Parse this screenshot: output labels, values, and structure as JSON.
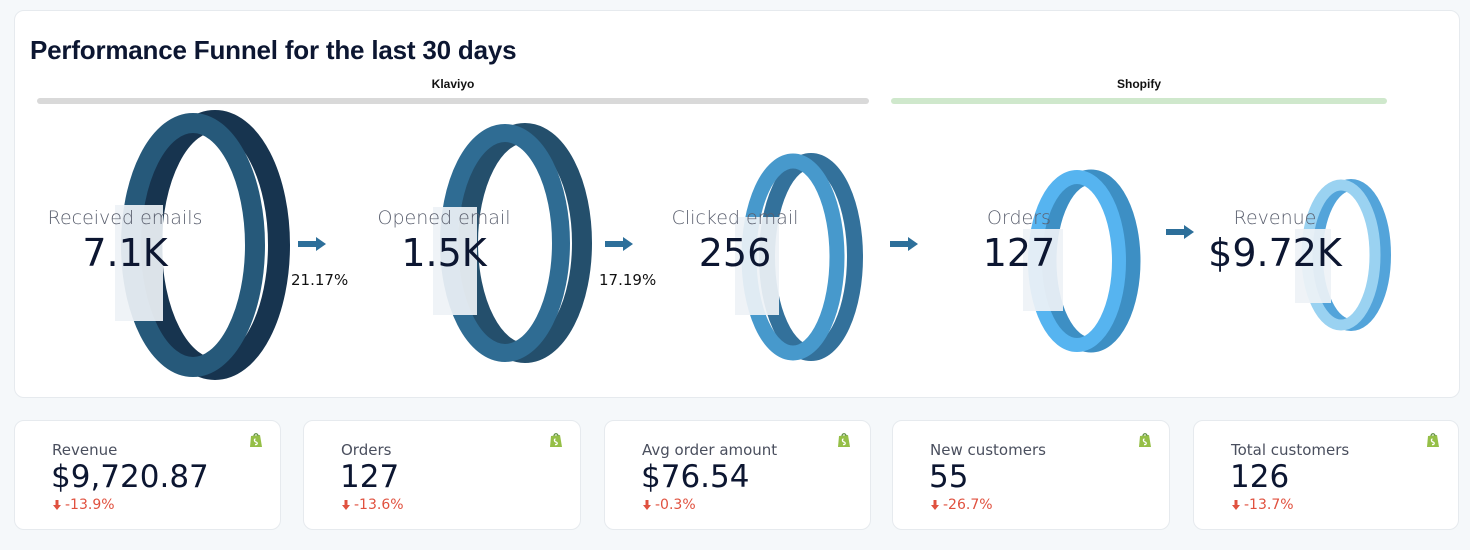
{
  "funnel": {
    "title": "Performance Funnel for the last 30 days",
    "groups": [
      {
        "label": "Klaviyo",
        "color": "#d9d9d9"
      },
      {
        "label": "Shopify",
        "color": "#cfe8cc"
      }
    ],
    "stages": [
      {
        "label": "Received emails",
        "value": "7.1K",
        "color_front": "#26597a",
        "color_side": "#17344f"
      },
      {
        "label": "Opened email",
        "value": "1.5K",
        "color_front": "#2f6c93",
        "color_side": "#244f6c"
      },
      {
        "label": "Clicked email",
        "value": "256",
        "color_front": "#4799cc",
        "color_side": "#33719b"
      },
      {
        "label": "Orders",
        "value": "127",
        "color_front": "#56b4f0",
        "color_side": "#3d8fc4"
      },
      {
        "label": "Revenue",
        "value": "$9.72K",
        "color_front": "#9ad2f1",
        "color_side": "#53a4da"
      }
    ],
    "conversion_rates": [
      "21.17%",
      "17.19%"
    ],
    "arrow_color": "#2d6f9a"
  },
  "kpis": [
    {
      "label": "Revenue",
      "value": "$9,720.87",
      "delta": "-13.9%",
      "icon": "shopify-icon"
    },
    {
      "label": "Orders",
      "value": "127",
      "delta": "-13.6%",
      "icon": "shopify-icon"
    },
    {
      "label": "Avg order amount",
      "value": "$76.54",
      "delta": "-0.3%",
      "icon": "shopify-icon"
    },
    {
      "label": "New customers",
      "value": "55",
      "delta": "-26.7%",
      "icon": "shopify-icon"
    },
    {
      "label": "Total customers",
      "value": "126",
      "delta": "-13.7%",
      "icon": "shopify-icon"
    }
  ],
  "colors": {
    "negative": "#e0513f",
    "shopify_green": "#95bf47"
  }
}
